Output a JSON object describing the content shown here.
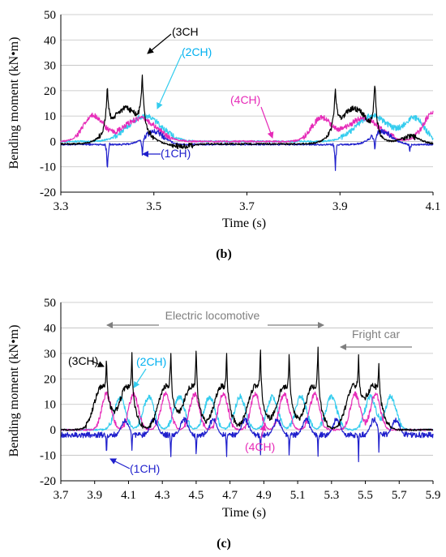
{
  "chart_data": [
    {
      "type": "line",
      "caption": "(b)",
      "xlabel": "Time (s)",
      "ylabel": "Bending moment (kN•m)",
      "xlim": [
        3.3,
        4.1
      ],
      "ylim": [
        -20,
        50
      ],
      "xticks": [
        3.3,
        3.5,
        3.7,
        3.9,
        4.1
      ],
      "yticks": [
        -20,
        -10,
        0,
        10,
        20,
        30,
        40,
        50
      ],
      "grid": "horizontal",
      "series": [
        {
          "name": "(1CH)",
          "color": "#1f1fcc"
        },
        {
          "name": "(2CH)",
          "color": "#33ccee"
        },
        {
          "name": "(3CH)",
          "color": "#000000"
        },
        {
          "name": "(4CH)",
          "color": "#e62bb8"
        }
      ],
      "annotations": [
        {
          "text": "(3CH",
          "color": "#000000"
        },
        {
          "text": "(2CH)",
          "color": "#00b0f0"
        },
        {
          "text": "(4CH)",
          "color": "#e62bb8"
        },
        {
          "text": "(1CH)",
          "color": "#1f1fcc"
        }
      ]
    },
    {
      "type": "line",
      "caption": "(c)",
      "xlabel": "Time (s)",
      "ylabel": "Bending moment (kN•m)",
      "xlim": [
        3.7,
        5.9
      ],
      "ylim": [
        -20,
        50
      ],
      "xticks": [
        3.7,
        3.9,
        4.1,
        4.3,
        4.5,
        4.7,
        4.9,
        5.1,
        5.3,
        5.5,
        5.7,
        5.9
      ],
      "yticks": [
        -20,
        -10,
        0,
        10,
        20,
        30,
        40,
        50
      ],
      "grid": "horizontal",
      "series": [
        {
          "name": "(1CH)",
          "color": "#1f1fcc"
        },
        {
          "name": "(2CH)",
          "color": "#33ccee"
        },
        {
          "name": "(3CH)",
          "color": "#000000"
        },
        {
          "name": "(4CH)",
          "color": "#e62bb8"
        }
      ],
      "annotations": [
        {
          "text": "(3CH)",
          "color": "#000000"
        },
        {
          "text": "(2CH)",
          "color": "#00b0f0"
        },
        {
          "text": "(1CH)",
          "color": "#1f1fcc"
        },
        {
          "text": "(4CH)",
          "color": "#e62bb8"
        },
        {
          "text": "Electric locomotive",
          "color": "#7f7f7f"
        },
        {
          "text": "Fright car",
          "color": "#7f7f7f"
        }
      ]
    }
  ]
}
